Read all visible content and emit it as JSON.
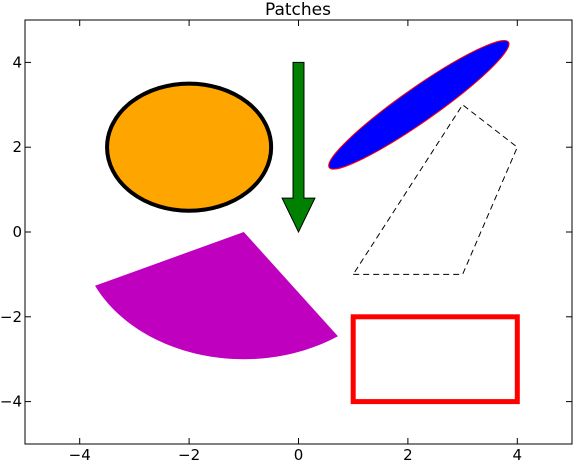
{
  "chart_data": {
    "type": "patches",
    "title": "Patches",
    "xlabel": "",
    "ylabel": "",
    "xlim": [
      -5,
      5
    ],
    "ylim": [
      -5,
      5
    ],
    "xticks": [
      -4,
      -2,
      0,
      2,
      4
    ],
    "yticks": [
      -4,
      -2,
      0,
      2,
      4
    ],
    "xtick_labels": [
      "−4",
      "−2",
      "0",
      "2",
      "4"
    ],
    "ytick_labels": [
      "−4",
      "−2",
      "0",
      "2",
      "4"
    ],
    "grid": false,
    "legend": "none",
    "patches": [
      {
        "name": "ellipse-orange",
        "kind": "ellipse",
        "center": [
          -2,
          2
        ],
        "width": 3,
        "height": 3,
        "angle": 0,
        "facecolor": "#ffa500",
        "edgecolor": "#000000",
        "linewidth": 4,
        "linestyle": "solid"
      },
      {
        "name": "arrow-green",
        "kind": "arrow",
        "x": 0,
        "y": 4,
        "dx": 0,
        "dy": -4,
        "shaft_width": 0.2,
        "head_width": 0.6,
        "head_length": 0.8,
        "facecolor": "#008000",
        "edgecolor": "#000000",
        "linewidth": 1
      },
      {
        "name": "ellipse-blue",
        "kind": "ellipse",
        "center": [
          2.2,
          3
        ],
        "width": 4,
        "height": 0.8,
        "angle": 35,
        "facecolor": "#0000ff",
        "edgecolor": "#ff0000",
        "linewidth": 1
      },
      {
        "name": "polygon-dashed",
        "kind": "polygon",
        "points": [
          [
            1,
            -1
          ],
          [
            3,
            -1
          ],
          [
            4,
            2
          ],
          [
            3,
            3
          ]
        ],
        "facecolor": "none",
        "edgecolor": "#000000",
        "linewidth": 1,
        "linestyle": "dashed"
      },
      {
        "name": "wedge-magenta",
        "kind": "wedge",
        "center": [
          -1,
          0
        ],
        "radius": 3,
        "theta1": 205,
        "theta2": 305,
        "facecolor": "#bf00bf",
        "edgecolor": "none"
      },
      {
        "name": "rectangle-red",
        "kind": "rectangle",
        "xy": [
          1,
          -4
        ],
        "width": 3,
        "height": 2,
        "facecolor": "none",
        "edgecolor": "#ff0000",
        "linewidth": 5
      }
    ]
  }
}
